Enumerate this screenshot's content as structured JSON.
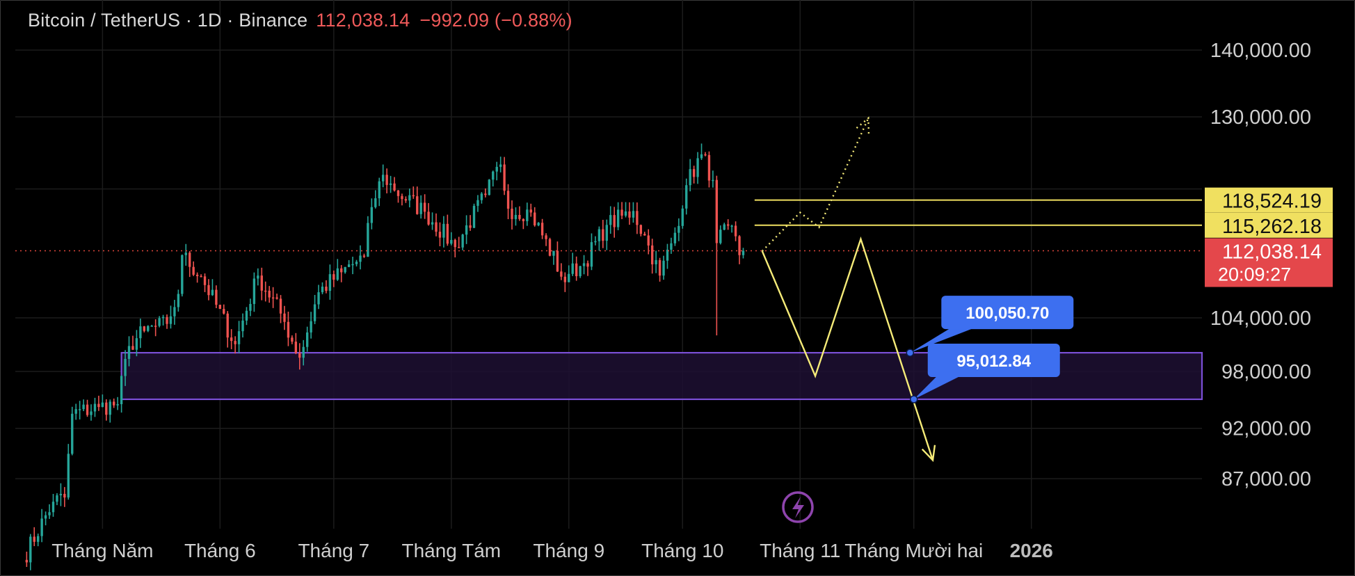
{
  "header": {
    "symbol": "Bitcoin / TetherUS · 1D · Binance",
    "last_price": "112,038.14",
    "change": "−992.09 (−0.88%)"
  },
  "colors": {
    "background": "#000000",
    "grid": "#1c1c1c",
    "up": "#26a69a",
    "down": "#ef5350",
    "level_line": "#f0e060",
    "path_line": "#f5eb78",
    "zone_border": "#7b4fd6",
    "zone_fill": "#1d0f33",
    "bubble": "#3d6ff0",
    "price_dotted": "#e0463c",
    "lightning": "#8e44ad"
  },
  "icons": {
    "replay": "lightning-bolt-icon"
  },
  "chart_data": {
    "type": "candlestick",
    "title": "Bitcoin / TetherUS · 1D · Binance",
    "y_ticks": [
      "140,000.00",
      "130,000.00",
      "104,000.00",
      "98,000.00",
      "92,000.00",
      "87,000.00"
    ],
    "y_tick_values": [
      140000,
      130000,
      104000,
      98000,
      92000,
      87000
    ],
    "y_scale": "log",
    "x_ticks": [
      "Tháng Năm",
      "Tháng 6",
      "Tháng 7",
      "Tháng Tám",
      "Tháng 9",
      "Tháng 10",
      "Tháng 11",
      "Tháng Mười hai",
      "2026"
    ],
    "x_tick_dates": [
      "2025-05-01",
      "2025-06-01",
      "2025-07-01",
      "2025-08-01",
      "2025-09-01",
      "2025-10-01",
      "2025-11-01",
      "2025-12-01",
      "2026-01-01"
    ],
    "x_range": [
      "2025-04-08",
      "2026-02-15"
    ],
    "y_range": [
      82300,
      148000
    ],
    "grid": true,
    "close_series": {
      "start_date": "2025-04-10",
      "interval": "1D",
      "anchors": [
        [
          "2025-04-10",
          79500
        ],
        [
          "2025-04-18",
          84800
        ],
        [
          "2025-04-21",
          85200
        ],
        [
          "2025-04-23",
          93500
        ],
        [
          "2025-04-30",
          94200
        ],
        [
          "2025-05-05",
          94500
        ],
        [
          "2025-05-08",
          100800
        ],
        [
          "2025-05-12",
          102500
        ],
        [
          "2025-05-18",
          103300
        ],
        [
          "2025-05-21",
          106800
        ],
        [
          "2025-05-22",
          111500
        ],
        [
          "2025-05-27",
          108900
        ],
        [
          "2025-06-05",
          101000
        ],
        [
          "2025-06-11",
          109000
        ],
        [
          "2025-06-17",
          104500
        ],
        [
          "2025-06-22",
          99500
        ],
        [
          "2025-06-27",
          107000
        ],
        [
          "2025-07-03",
          109400
        ],
        [
          "2025-07-09",
          111300
        ],
        [
          "2025-07-11",
          117600
        ],
        [
          "2025-07-14",
          121900
        ],
        [
          "2025-07-17",
          119800
        ],
        [
          "2025-07-25",
          117000
        ],
        [
          "2025-08-02",
          112500
        ],
        [
          "2025-08-10",
          119200
        ],
        [
          "2025-08-14",
          123300
        ],
        [
          "2025-08-16",
          117400
        ],
        [
          "2025-08-22",
          116900
        ],
        [
          "2025-08-31",
          108200
        ],
        [
          "2025-09-01",
          109200
        ],
        [
          "2025-09-05",
          110500
        ],
        [
          "2025-09-11",
          115300
        ],
        [
          "2025-09-18",
          117100
        ],
        [
          "2025-09-22",
          112700
        ],
        [
          "2025-09-25",
          109000
        ],
        [
          "2025-09-29",
          114300
        ],
        [
          "2025-10-02",
          120500
        ],
        [
          "2025-10-06",
          124700
        ],
        [
          "2025-10-09",
          121200
        ],
        [
          "2025-10-10",
          113000
        ],
        [
          "2025-10-13",
          115200
        ],
        [
          "2025-10-16",
          111500
        ],
        [
          "2025-10-17",
          112038.14
        ]
      ]
    },
    "extremes": {
      "all_time_high": {
        "date": "2025-10-06",
        "value": 126200
      },
      "crash_wick": {
        "date": "2025-10-10",
        "value": 102000
      },
      "june_low_wick": {
        "date": "2025-06-22",
        "value": 98200
      }
    },
    "levels": [
      {
        "label": "118,524.19",
        "value": 118524.19,
        "from": "2025-10-20"
      },
      {
        "label": "115,262.18",
        "value": 115262.18,
        "from": "2025-10-20"
      }
    ],
    "current_price": {
      "label": "112,038.14",
      "value": 112038.14,
      "countdown": "20:09:27"
    },
    "support_zone": {
      "from": "2025-05-06",
      "top": 100050.7,
      "bottom": 95012.84
    },
    "projection_path": [
      [
        "2025-10-22",
        112000
      ],
      [
        "2025-11-05",
        97500
      ],
      [
        "2025-11-17",
        113500
      ],
      [
        "2025-12-06",
        88800
      ]
    ],
    "alt_path": [
      [
        "2025-10-22",
        112000
      ],
      [
        "2025-11-01",
        116900
      ],
      [
        "2025-11-06",
        115000
      ],
      [
        "2025-11-19",
        129800
      ]
    ],
    "callouts": [
      {
        "label": "100,050.70",
        "date": "2025-11-30",
        "value": 100050.7
      },
      {
        "label": "95,012.84",
        "date": "2025-12-01",
        "value": 95012.84
      }
    ]
  }
}
